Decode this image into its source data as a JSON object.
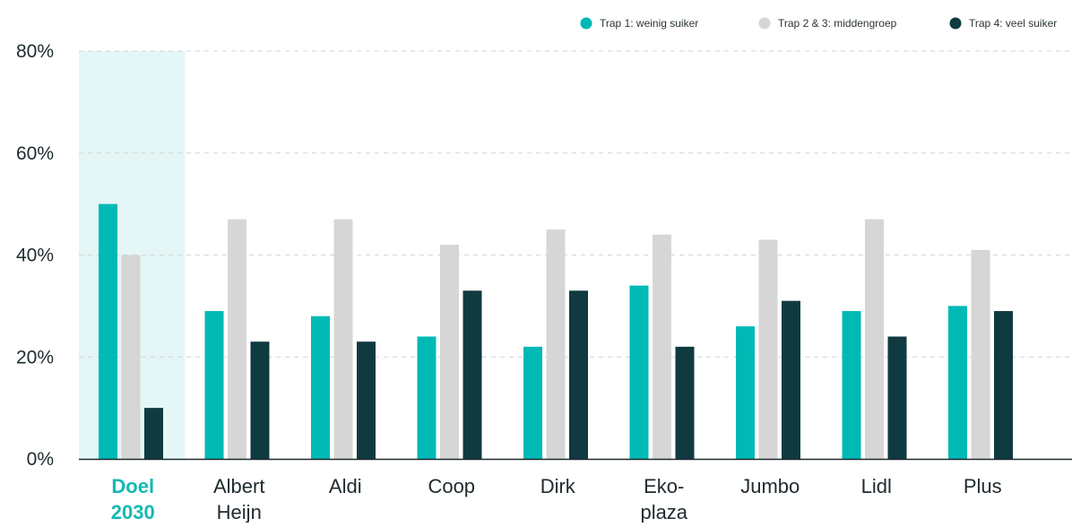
{
  "chart_data": {
    "type": "bar",
    "categories": [
      [
        "Doel",
        "2030"
      ],
      [
        "Albert",
        "Heijn"
      ],
      [
        "Aldi"
      ],
      [
        "Coop"
      ],
      [
        "Dirk"
      ],
      [
        "Eko-",
        "plaza"
      ],
      [
        "Jumbo"
      ],
      [
        "Lidl"
      ],
      [
        "Plus"
      ]
    ],
    "highlight_category_index": 0,
    "series": [
      {
        "name": "Trap 1: weinig suiker",
        "color": "#00b9b5",
        "values": [
          50,
          29,
          28,
          24,
          22,
          34,
          26,
          29,
          30
        ]
      },
      {
        "name": "Trap 2 & 3: middengroep",
        "color": "#d6d6d6",
        "values": [
          40,
          47,
          47,
          42,
          45,
          44,
          43,
          47,
          41
        ]
      },
      {
        "name": "Trap 4: veel suiker",
        "color": "#0f3a40",
        "values": [
          10,
          23,
          23,
          33,
          33,
          22,
          31,
          24,
          29
        ]
      }
    ],
    "ylim": [
      0,
      80
    ],
    "yticks": [
      "0%",
      "20%",
      "40%",
      "60%",
      "80%"
    ],
    "ytick_values": [
      0,
      20,
      40,
      60,
      80
    ],
    "grid": true,
    "legend_position": "top-right",
    "colors": {
      "highlight_band": "#e4f6f6",
      "highlight_label": "#16b8b4",
      "axis": "#1e2a2e",
      "grid": "#cfd6d8"
    }
  }
}
